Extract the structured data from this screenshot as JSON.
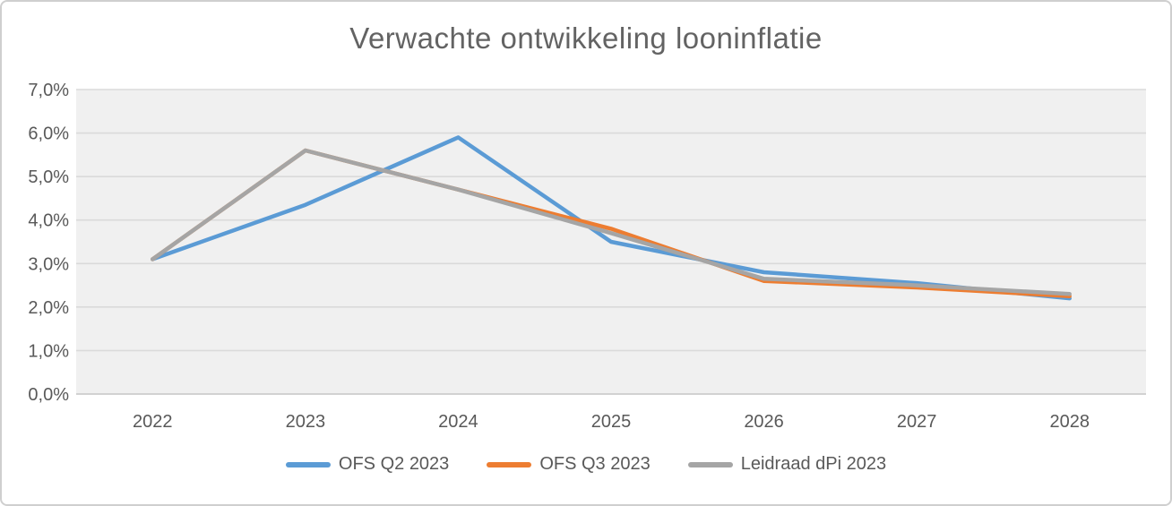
{
  "chart_data": {
    "type": "line",
    "title": "Verwachte ontwikkeling looninflatie",
    "categories": [
      "2022",
      "2023",
      "2024",
      "2025",
      "2026",
      "2027",
      "2028"
    ],
    "series": [
      {
        "name": "OFS Q2 2023",
        "color": "#5B9BD5",
        "values": [
          3.1,
          4.35,
          5.9,
          3.5,
          2.8,
          2.55,
          2.2
        ]
      },
      {
        "name": "OFS Q3 2023",
        "color": "#ED7D31",
        "values": [
          3.1,
          5.6,
          4.7,
          3.8,
          2.6,
          2.45,
          2.25
        ]
      },
      {
        "name": "Leidraad dPi 2023",
        "color": "#A5A5A5",
        "values": [
          3.1,
          5.6,
          4.7,
          3.7,
          2.65,
          2.5,
          2.3
        ]
      }
    ],
    "y_axis": {
      "min": 0,
      "max": 7,
      "step": 1,
      "tick_labels": [
        "0,0%",
        "1,0%",
        "2,0%",
        "3,0%",
        "4,0%",
        "5,0%",
        "6,0%",
        "7,0%"
      ]
    },
    "x_axis": {
      "tick_labels": [
        "2022",
        "2023",
        "2024",
        "2025",
        "2026",
        "2027",
        "2028"
      ]
    },
    "grid": true,
    "legend_position": "bottom",
    "colors": {
      "plot_background": "#F0F0F0",
      "gridline": "#DADADA",
      "axis_line": "#C6C6C6",
      "text": "#595959",
      "title_text": "#636363",
      "frame_border": "#CFCFCF",
      "background": "#FFFFFF"
    }
  }
}
